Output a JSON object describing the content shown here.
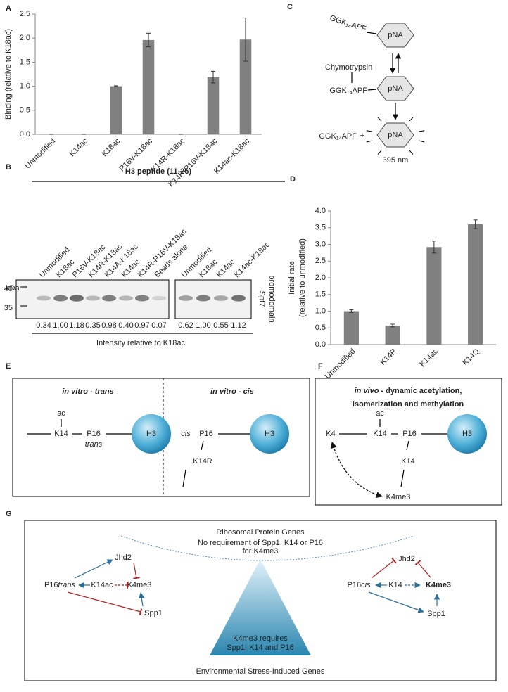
{
  "chart_data": [
    {
      "type": "bar",
      "panel": "A",
      "ylabel": "Binding (relative to K18ac)",
      "categories": [
        "Unmodified",
        "K14ac",
        "K18ac",
        "P16V-K18ac",
        "K14R-K18ac",
        "K14R-P16V-K18ac",
        "K14ac-K18ac"
      ],
      "values": [
        0,
        0,
        1.0,
        1.96,
        0,
        1.19,
        1.97
      ],
      "errors": [
        0,
        0,
        0.01,
        0.14,
        0,
        0.12,
        0.45
      ],
      "color": "#808080",
      "ylim": [
        0,
        2.5
      ],
      "yticks": [
        {
          "value": 0,
          "label": "0.0"
        },
        {
          "value": 0.5,
          "label": "0.5"
        },
        {
          "value": 1,
          "label": "1.0"
        },
        {
          "value": 1.5,
          "label": "1.5"
        },
        {
          "value": 2,
          "label": "2.0"
        },
        {
          "value": 2.5,
          "label": "2.5"
        }
      ]
    },
    {
      "type": "bar",
      "panel": "D",
      "ylabel": [
        "Initial rate",
        "(relative to unmodified)"
      ],
      "categories": [
        "Unmodified",
        "K14R",
        "K14ac",
        "K14Q"
      ],
      "values": [
        1.0,
        0.57,
        2.92,
        3.6
      ],
      "errors": [
        0.04,
        0.04,
        0.18,
        0.13
      ],
      "color": "#808080",
      "ylim": [
        0,
        4
      ],
      "yticks": [
        {
          "value": 0,
          "label": "0.0"
        },
        {
          "value": 0.5,
          "label": "0.5"
        },
        {
          "value": 1,
          "label": "1.0"
        },
        {
          "value": 1.5,
          "label": "1.5"
        },
        {
          "value": 2,
          "label": "2.0"
        },
        {
          "value": 2.5,
          "label": "2.5"
        },
        {
          "value": 3,
          "label": "3.0"
        },
        {
          "value": 3.5,
          "label": "3.5"
        },
        {
          "value": 4,
          "label": "4.0"
        }
      ]
    }
  ],
  "blot": {
    "panel": "B",
    "title": "H3 peptide (11-26)",
    "lanes": [
      "Unmodified",
      "K18ac",
      "P16V-K18ac",
      "K14R-K18ac",
      "K14A-K18ac",
      "K14ac",
      "K14R-P16V-K18ac",
      "Beads alone",
      "Unmodified",
      "K18ac",
      "K14ac",
      "K14ac-K18ac"
    ],
    "kda_label": "kDa",
    "markers": [
      "40",
      "35"
    ],
    "intensities": [
      "0.34",
      "1.00",
      "1.18",
      "0.35",
      "0.98",
      "0.40",
      "0.97",
      "0.07",
      "0.62",
      "1.00",
      "0.55",
      "1.12"
    ],
    "caption": "Intensity relative to K18ac",
    "protein": [
      "Spt7",
      "bromodomain"
    ]
  },
  "assay": {
    "panel": "C",
    "peptide": [
      "GGK",
      "14",
      "APF"
    ],
    "reporter": "pNA",
    "enzyme": "Chymotrypsin",
    "plus": "+",
    "wavelength": "395 nm"
  },
  "E": {
    "panel": "E",
    "trans": {
      "title": "in vitro - trans",
      "ac": "ac",
      "k14": "K14",
      "p16": "P16",
      "conf": "trans",
      "core": "H3"
    },
    "cis": {
      "title": "in vitro - cis",
      "conf": "cis",
      "p16": "P16",
      "core": "H3",
      "k14": "K14R"
    }
  },
  "F": {
    "panel": "F",
    "title_italic": "in vivo",
    "title": [
      "- dynamic acetylation,",
      "isomerization and methylation"
    ],
    "k4": "K4",
    "ac": "ac",
    "k14": [
      "K14",
      "K14"
    ],
    "p16": "P16",
    "core": "H3",
    "k4me3": "K4me3"
  },
  "G": {
    "panel": "G",
    "top": "Ribosomal Protein Genes",
    "top_note": [
      "No requirement of Spp1, K14 or P16",
      "for K4me3"
    ],
    "center": [
      "K4me3 requires",
      "Spp1, K14 and P16"
    ],
    "bottom": "Environmental Stress-Induced Genes",
    "left": {
      "jhd2": "Jhd2",
      "p16": [
        "P16",
        "trans"
      ],
      "k14": "K14ac",
      "k4me3": "K4me3",
      "spp1": "Spp1"
    },
    "right": {
      "jhd2": "Jhd2",
      "p16": [
        "P16",
        "cis"
      ],
      "k14": "K14",
      "k4me3": "K4me3",
      "spp1": "Spp1"
    }
  }
}
